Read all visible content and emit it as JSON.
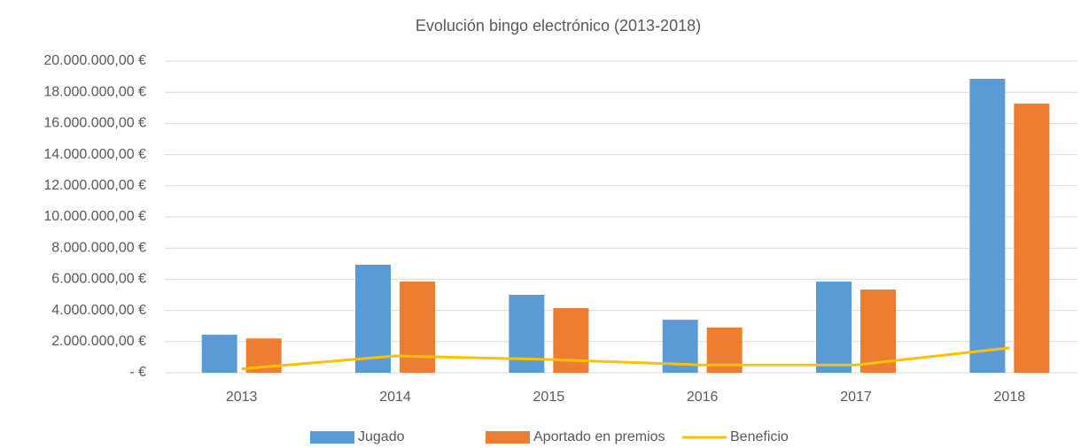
{
  "chart_data": {
    "type": "bar_line",
    "title": "Evolución bingo electrónico (2013-2018)",
    "categories": [
      "2013",
      "2014",
      "2015",
      "2016",
      "2017",
      "2018"
    ],
    "series": [
      {
        "name": "Jugado",
        "color": "#5b9bd5",
        "type": "bar",
        "values": [
          2440000,
          6930000,
          5000000,
          3400000,
          5850000,
          18860000
        ]
      },
      {
        "name": "Aportado en premios",
        "color": "#ed7d31",
        "type": "bar",
        "values": [
          2200000,
          5850000,
          4150000,
          2900000,
          5340000,
          17270000
        ]
      },
      {
        "name": "Beneficio",
        "color": "#ffc000",
        "type": "line",
        "values": [
          250000,
          1080000,
          850000,
          500000,
          500000,
          1600000
        ]
      }
    ],
    "ylim": [
      0,
      20000000
    ],
    "yticks": [
      {
        "value": 0,
        "label": "-  €"
      },
      {
        "value": 2000000,
        "label": "2.000.000,00 €"
      },
      {
        "value": 4000000,
        "label": "4.000.000,00 €"
      },
      {
        "value": 6000000,
        "label": "6.000.000,00 €"
      },
      {
        "value": 8000000,
        "label": "8.000.000,00 €"
      },
      {
        "value": 10000000,
        "label": "10.000.000,00 €"
      },
      {
        "value": 12000000,
        "label": "12.000.000,00 €"
      },
      {
        "value": 14000000,
        "label": "14.000.000,00 €"
      },
      {
        "value": 16000000,
        "label": "16.000.000,00 €"
      },
      {
        "value": 18000000,
        "label": "18.000.000,00 €"
      },
      {
        "value": 20000000,
        "label": "20.000.000,00 €"
      }
    ],
    "grid": true,
    "legend": "bottom"
  }
}
